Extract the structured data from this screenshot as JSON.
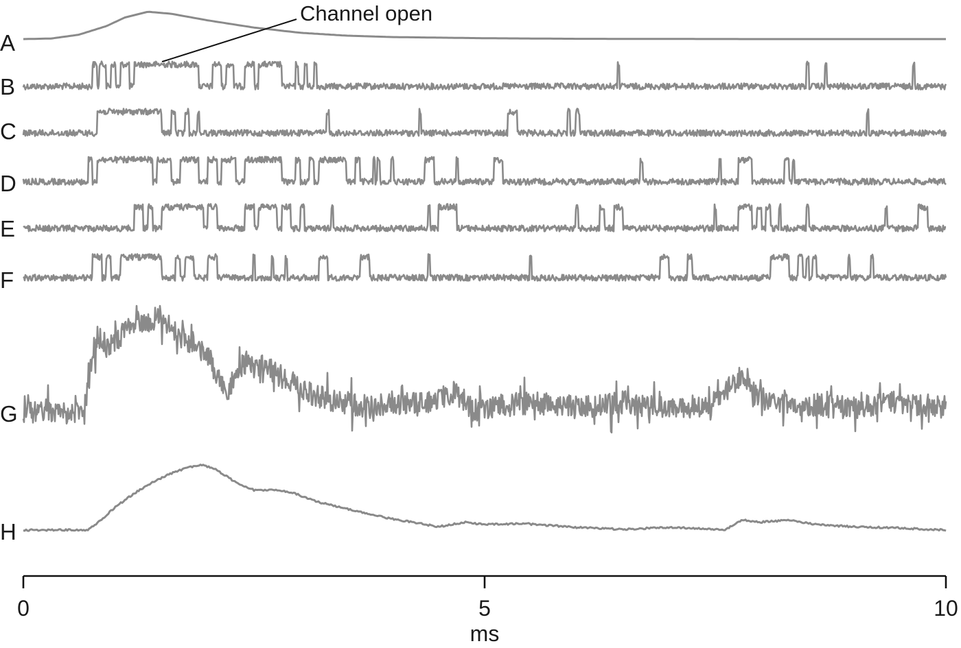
{
  "chart_data": {
    "type": "line",
    "xlabel": "ms",
    "xlim": [
      0,
      10
    ],
    "xticks": [
      "0",
      "5",
      "10"
    ],
    "annotation": {
      "text": "Channel open",
      "points_to": "B"
    },
    "rows": [
      {
        "label": "A",
        "kind": "smooth",
        "peak_ms": 1.35,
        "x_ms": [
          0,
          0.3,
          0.6,
          0.9,
          1.1,
          1.35,
          1.6,
          2.0,
          2.5,
          3.0,
          3.5,
          4.0,
          5.0,
          6.0,
          8.0,
          10.0
        ],
        "y": [
          0.0,
          0.02,
          0.15,
          0.45,
          0.75,
          0.95,
          0.88,
          0.65,
          0.4,
          0.22,
          0.12,
          0.07,
          0.03,
          0.01,
          0.0,
          0.0
        ]
      },
      {
        "label": "B",
        "kind": "single-channel",
        "open_intervals_ms": [
          [
            0.75,
            0.8
          ],
          [
            0.82,
            0.9
          ],
          [
            0.95,
            1.0
          ],
          [
            1.05,
            1.15
          ],
          [
            1.2,
            1.9
          ],
          [
            2.05,
            2.15
          ],
          [
            2.2,
            2.28
          ],
          [
            2.4,
            2.5
          ],
          [
            2.55,
            2.8
          ],
          [
            2.95,
            2.98
          ],
          [
            3.05,
            3.08
          ],
          [
            3.15,
            3.18
          ]
        ],
        "brief_openings_ms": [
          6.45,
          8.5,
          8.7,
          9.65
        ]
      },
      {
        "label": "C",
        "kind": "single-channel",
        "open_intervals_ms": [
          [
            0.8,
            1.5
          ],
          [
            1.6,
            1.65
          ],
          [
            1.75,
            1.8
          ],
          [
            5.25,
            5.35
          ],
          [
            5.9,
            5.93
          ],
          [
            6.0,
            6.03
          ]
        ],
        "brief_openings_ms": [
          1.9,
          3.3,
          4.3,
          6.0,
          9.15
        ]
      },
      {
        "label": "D",
        "kind": "single-channel",
        "open_intervals_ms": [
          [
            0.7,
            0.75
          ],
          [
            0.8,
            1.4
          ],
          [
            1.45,
            1.6
          ],
          [
            1.7,
            1.9
          ],
          [
            2.0,
            2.1
          ],
          [
            2.15,
            2.3
          ],
          [
            2.4,
            2.8
          ],
          [
            2.95,
            3.0
          ],
          [
            3.1,
            3.15
          ],
          [
            3.2,
            3.5
          ],
          [
            3.6,
            3.65
          ],
          [
            4.35,
            4.45
          ],
          [
            5.1,
            5.2
          ],
          [
            7.75,
            7.9
          ],
          [
            8.25,
            8.3
          ]
        ],
        "brief_openings_ms": [
          3.8,
          3.85,
          4.0,
          4.7,
          6.7,
          7.55,
          8.35
        ]
      },
      {
        "label": "E",
        "kind": "single-channel",
        "open_intervals_ms": [
          [
            1.2,
            1.3
          ],
          [
            1.35,
            1.4
          ],
          [
            1.5,
            1.95
          ],
          [
            2.0,
            2.1
          ],
          [
            2.4,
            2.5
          ],
          [
            2.55,
            2.75
          ],
          [
            2.8,
            2.9
          ],
          [
            3.0,
            3.05
          ],
          [
            4.5,
            4.7
          ],
          [
            6.25,
            6.3
          ],
          [
            6.4,
            6.5
          ],
          [
            7.75,
            7.9
          ],
          [
            7.95,
            8.0
          ],
          [
            8.05,
            8.1
          ],
          [
            9.7,
            9.8
          ]
        ],
        "brief_openings_ms": [
          3.35,
          4.4,
          6.0,
          7.5,
          8.2,
          8.5,
          9.35
        ]
      },
      {
        "label": "F",
        "kind": "single-channel",
        "open_intervals_ms": [
          [
            0.75,
            0.85
          ],
          [
            0.9,
            0.95
          ],
          [
            1.05,
            1.5
          ],
          [
            1.65,
            1.7
          ],
          [
            1.75,
            1.85
          ],
          [
            2.0,
            2.1
          ],
          [
            3.2,
            3.3
          ],
          [
            3.65,
            3.75
          ],
          [
            6.9,
            7.0
          ],
          [
            7.2,
            7.25
          ],
          [
            8.1,
            8.3
          ],
          [
            8.4,
            8.45
          ],
          [
            8.55,
            8.6
          ]
        ],
        "brief_openings_ms": [
          2.5,
          2.7,
          2.85,
          4.4,
          5.5,
          8.5,
          8.95,
          9.2
        ]
      },
      {
        "label": "G",
        "kind": "sum",
        "x_ms": [
          0,
          0.65,
          0.7,
          0.8,
          0.9,
          1.0,
          1.1,
          1.2,
          1.4,
          1.5,
          1.6,
          1.8,
          2.0,
          2.2,
          2.4,
          2.6,
          2.8,
          3.0,
          3.2,
          3.5,
          3.8,
          4.0,
          4.3,
          4.5,
          4.7,
          4.8,
          5.0,
          5.5,
          6.0,
          6.5,
          7.0,
          7.5,
          7.7,
          7.8,
          7.9,
          8.1,
          8.5,
          9.0,
          9.5,
          10.0
        ],
        "y": [
          0.0,
          0.0,
          0.35,
          0.75,
          0.65,
          0.7,
          0.8,
          0.88,
          0.9,
          0.95,
          0.8,
          0.7,
          0.55,
          0.2,
          0.5,
          0.45,
          0.35,
          0.25,
          0.15,
          0.1,
          0.05,
          0.1,
          0.08,
          0.15,
          0.2,
          0.05,
          0.05,
          0.1,
          0.05,
          0.1,
          0.05,
          0.08,
          0.3,
          0.35,
          0.2,
          0.1,
          0.08,
          0.05,
          0.1,
          0.05
        ]
      },
      {
        "label": "H",
        "kind": "average",
        "x_ms": [
          0,
          0.7,
          0.8,
          1.0,
          1.2,
          1.4,
          1.6,
          1.8,
          1.95,
          2.1,
          2.3,
          2.5,
          2.7,
          2.9,
          3.2,
          3.5,
          3.8,
          4.2,
          4.5,
          4.8,
          5.0,
          5.4,
          5.6,
          6.0,
          6.5,
          7.0,
          7.4,
          7.6,
          7.8,
          8.0,
          8.3,
          8.6,
          9.0,
          9.5,
          10.0
        ],
        "y": [
          0.0,
          0.0,
          0.1,
          0.35,
          0.55,
          0.72,
          0.85,
          0.95,
          0.98,
          0.9,
          0.72,
          0.6,
          0.6,
          0.57,
          0.42,
          0.32,
          0.22,
          0.12,
          0.05,
          0.12,
          0.08,
          0.1,
          0.08,
          0.04,
          0.01,
          0.04,
          0.02,
          0.0,
          0.15,
          0.12,
          0.15,
          0.08,
          0.05,
          0.03,
          0.0
        ]
      }
    ]
  }
}
